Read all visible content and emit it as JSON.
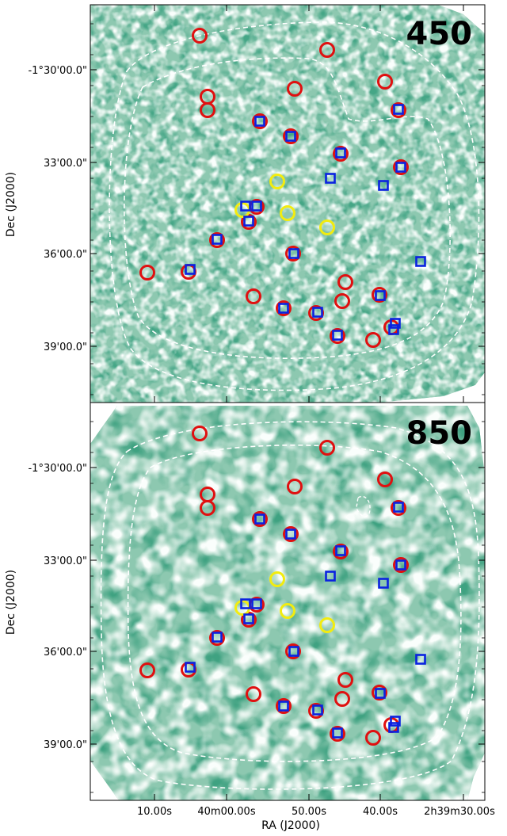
{
  "figure": {
    "panels": [
      {
        "label": "450"
      },
      {
        "label": "850"
      }
    ],
    "y_axis": {
      "title": "Dec (J2000)",
      "ticks": [
        "-1°30'00.0\"",
        "33'00.0\"",
        "36'00.0\"",
        "39'00.0\""
      ]
    },
    "x_axis": {
      "title": "RA (J2000)",
      "ticks": [
        "10.00s",
        "40m00.00s",
        "50.00s",
        "40.00s",
        "2h39m30.00s"
      ]
    },
    "colors": {
      "map_base": "#8dc8b0",
      "map_dark": "#1f6e4c",
      "map_light": "#e8f6ef",
      "red_circle": "#e01010",
      "yellow_circle": "#f2ec10",
      "blue_square": "#0a22e0",
      "contour": "#ffffff"
    },
    "markers": {
      "red_circles": [
        [
          252,
          45
        ],
        [
          413,
          63
        ],
        [
          486,
          103
        ],
        [
          372,
          112
        ],
        [
          262,
          122
        ],
        [
          262,
          139
        ],
        [
          328,
          153
        ],
        [
          367,
          172
        ],
        [
          430,
          194
        ],
        [
          503,
          139
        ],
        [
          506,
          211
        ],
        [
          324,
          261
        ],
        [
          314,
          280
        ],
        [
          274,
          303
        ],
        [
          370,
          320
        ],
        [
          186,
          344
        ],
        [
          238,
          343
        ],
        [
          436,
          356
        ],
        [
          320,
          374
        ],
        [
          432,
          380
        ],
        [
          479,
          372
        ],
        [
          399,
          395
        ],
        [
          358,
          389
        ],
        [
          426,
          424
        ],
        [
          494,
          413
        ],
        [
          471,
          429
        ]
      ],
      "yellow_circles": [
        [
          350,
          229
        ],
        [
          363,
          269
        ],
        [
          413,
          287
        ],
        [
          306,
          265
        ]
      ],
      "blue_squares": [
        [
          503,
          138
        ],
        [
          328,
          153
        ],
        [
          367,
          172
        ],
        [
          430,
          193
        ],
        [
          417,
          225
        ],
        [
          484,
          234
        ],
        [
          506,
          211
        ],
        [
          310,
          260
        ],
        [
          324,
          260
        ],
        [
          314,
          279
        ],
        [
          274,
          302
        ],
        [
          371,
          320
        ],
        [
          240,
          340
        ],
        [
          531,
          330
        ],
        [
          480,
          373
        ],
        [
          358,
          389
        ],
        [
          401,
          394
        ],
        [
          426,
          423
        ],
        [
          499,
          408
        ],
        [
          497,
          416
        ]
      ]
    }
  }
}
